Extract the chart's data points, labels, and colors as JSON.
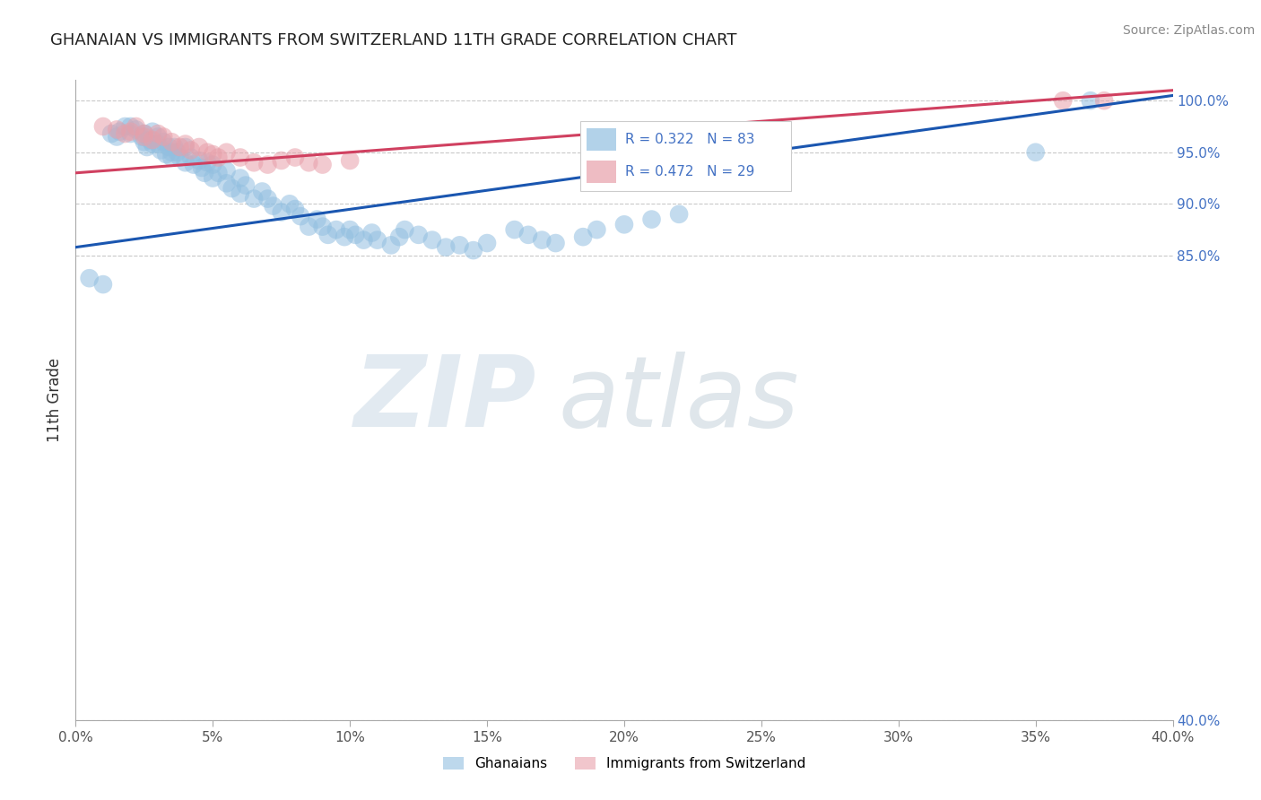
{
  "title": "GHANAIAN VS IMMIGRANTS FROM SWITZERLAND 11TH GRADE CORRELATION CHART",
  "source": "Source: ZipAtlas.com",
  "xlim": [
    0.0,
    0.4
  ],
  "ylim": [
    0.4,
    1.02
  ],
  "ylabel": "11th Grade",
  "blue_R": 0.322,
  "blue_N": 83,
  "pink_R": 0.472,
  "pink_N": 29,
  "blue_color": "#92BFE0",
  "pink_color": "#E8A0AA",
  "blue_line_color": "#1A56B0",
  "pink_line_color": "#D04060",
  "background_color": "#FFFFFF",
  "grid_color": "#BBBBBB",
  "ytick_vals": [
    0.4,
    0.85,
    0.9,
    0.95,
    1.0
  ],
  "ytick_labels": [
    "40.0%",
    "85.0%",
    "90.0%",
    "95.0%",
    "100.0%"
  ],
  "xtick_vals": [
    0.0,
    0.05,
    0.1,
    0.15,
    0.2,
    0.25,
    0.3,
    0.35,
    0.4
  ],
  "xtick_labels": [
    "0.0%",
    "5%",
    "10%",
    "15%",
    "20%",
    "25%",
    "30%",
    "35%",
    "40.0%"
  ],
  "blue_scatter_x": [
    0.005,
    0.01,
    0.013,
    0.015,
    0.016,
    0.018,
    0.02,
    0.02,
    0.022,
    0.024,
    0.025,
    0.025,
    0.026,
    0.027,
    0.028,
    0.028,
    0.03,
    0.03,
    0.031,
    0.032,
    0.033,
    0.034,
    0.035,
    0.035,
    0.036,
    0.037,
    0.038,
    0.04,
    0.04,
    0.042,
    0.043,
    0.045,
    0.046,
    0.047,
    0.048,
    0.05,
    0.05,
    0.052,
    0.055,
    0.055,
    0.057,
    0.06,
    0.06,
    0.062,
    0.065,
    0.068,
    0.07,
    0.072,
    0.075,
    0.078,
    0.08,
    0.082,
    0.085,
    0.088,
    0.09,
    0.092,
    0.095,
    0.098,
    0.1,
    0.102,
    0.105,
    0.108,
    0.11,
    0.115,
    0.118,
    0.12,
    0.125,
    0.13,
    0.135,
    0.14,
    0.145,
    0.15,
    0.16,
    0.165,
    0.17,
    0.175,
    0.185,
    0.19,
    0.2,
    0.21,
    0.22,
    0.35,
    0.37
  ],
  "blue_scatter_y": [
    0.828,
    0.822,
    0.968,
    0.965,
    0.97,
    0.975,
    0.968,
    0.975,
    0.972,
    0.965,
    0.96,
    0.968,
    0.955,
    0.962,
    0.958,
    0.97,
    0.965,
    0.958,
    0.952,
    0.96,
    0.948,
    0.955,
    0.945,
    0.95,
    0.955,
    0.95,
    0.945,
    0.94,
    0.955,
    0.945,
    0.938,
    0.942,
    0.935,
    0.93,
    0.94,
    0.925,
    0.938,
    0.93,
    0.92,
    0.932,
    0.915,
    0.91,
    0.925,
    0.918,
    0.905,
    0.912,
    0.905,
    0.898,
    0.892,
    0.9,
    0.895,
    0.888,
    0.878,
    0.885,
    0.878,
    0.87,
    0.875,
    0.868,
    0.875,
    0.87,
    0.865,
    0.872,
    0.865,
    0.86,
    0.868,
    0.875,
    0.87,
    0.865,
    0.858,
    0.86,
    0.855,
    0.862,
    0.875,
    0.87,
    0.865,
    0.862,
    0.868,
    0.875,
    0.88,
    0.885,
    0.89,
    0.95,
    1.0
  ],
  "pink_scatter_x": [
    0.01,
    0.015,
    0.018,
    0.02,
    0.022,
    0.025,
    0.025,
    0.028,
    0.03,
    0.032,
    0.035,
    0.038,
    0.04,
    0.042,
    0.045,
    0.048,
    0.05,
    0.052,
    0.055,
    0.06,
    0.065,
    0.07,
    0.075,
    0.08,
    0.085,
    0.09,
    0.1,
    0.36,
    0.375
  ],
  "pink_scatter_y": [
    0.975,
    0.972,
    0.968,
    0.97,
    0.975,
    0.968,
    0.965,
    0.962,
    0.968,
    0.965,
    0.96,
    0.955,
    0.958,
    0.952,
    0.955,
    0.95,
    0.948,
    0.945,
    0.95,
    0.945,
    0.94,
    0.938,
    0.942,
    0.945,
    0.94,
    0.938,
    0.942,
    1.0,
    1.0
  ],
  "blue_line_endpoints": [
    [
      0.0,
      0.858
    ],
    [
      0.4,
      1.005
    ]
  ],
  "pink_line_endpoints": [
    [
      0.0,
      0.93
    ],
    [
      0.4,
      1.01
    ]
  ]
}
